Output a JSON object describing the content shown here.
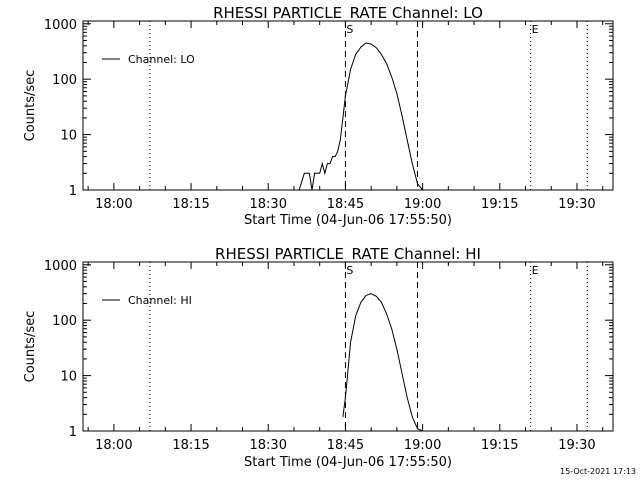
{
  "timestamp": "15-Oct-2021 17:13",
  "chart_data": [
    {
      "type": "line",
      "title": "RHESSI PARTICLE_RATE Channel: LO",
      "xlabel": "Start Time (04-Jun-06 17:55:50)",
      "ylabel": "Counts/sec",
      "yscale": "log",
      "ylim": [
        1,
        1000
      ],
      "xlim": [
        "17:54",
        "19:37"
      ],
      "xticks": [
        "18:00",
        "18:15",
        "18:30",
        "18:45",
        "19:00",
        "19:15",
        "19:30"
      ],
      "yticks": [
        "1",
        "10",
        "100",
        "1000"
      ],
      "legend": {
        "label": "Channel: LO",
        "position": "top-left"
      },
      "markers": [
        {
          "label": "",
          "style": "dotted",
          "time": "18:07"
        },
        {
          "label": "S",
          "style": "dashed",
          "time": "18:45"
        },
        {
          "label": "",
          "style": "dashed",
          "time": "18:59"
        },
        {
          "label": "E",
          "style": "dotted",
          "time": "19:21"
        },
        {
          "label": "",
          "style": "dotted",
          "time": "19:32"
        }
      ],
      "series": [
        {
          "name": "Channel: LO",
          "points": [
            [
              "18:36",
              1
            ],
            [
              "18:37",
              2
            ],
            [
              "18:38",
              2
            ],
            [
              "18:38.5",
              1
            ],
            [
              "18:39",
              2
            ],
            [
              "18:40",
              2
            ],
            [
              "18:40.5",
              3
            ],
            [
              "18:41",
              2
            ],
            [
              "18:41.5",
              3
            ],
            [
              "18:42",
              3
            ],
            [
              "18:42.5",
              4
            ],
            [
              "18:43",
              4
            ],
            [
              "18:43.5",
              5
            ],
            [
              "18:44",
              8
            ],
            [
              "18:44.5",
              20
            ],
            [
              "18:45",
              50
            ],
            [
              "18:46",
              150
            ],
            [
              "18:47",
              280
            ],
            [
              "18:48",
              380
            ],
            [
              "18:49",
              450
            ],
            [
              "18:50",
              430
            ],
            [
              "18:51",
              370
            ],
            [
              "18:52",
              280
            ],
            [
              "18:53",
              190
            ],
            [
              "18:54",
              110
            ],
            [
              "18:55",
              55
            ],
            [
              "18:56",
              22
            ],
            [
              "18:57",
              8
            ],
            [
              "18:58",
              3
            ],
            [
              "18:59",
              1.3
            ],
            [
              "19:00",
              1
            ]
          ]
        }
      ]
    },
    {
      "type": "line",
      "title": "RHESSI PARTICLE_RATE Channel: HI",
      "xlabel": "Start Time (04-Jun-06 17:55:50)",
      "ylabel": "Counts/sec",
      "yscale": "log",
      "ylim": [
        1,
        1000
      ],
      "xlim": [
        "17:54",
        "19:37"
      ],
      "xticks": [
        "18:00",
        "18:15",
        "18:30",
        "18:45",
        "19:00",
        "19:15",
        "19:30"
      ],
      "yticks": [
        "1",
        "10",
        "100",
        "1000"
      ],
      "legend": {
        "label": "Channel: HI",
        "position": "top-left"
      },
      "markers": [
        {
          "label": "",
          "style": "dotted",
          "time": "18:07"
        },
        {
          "label": "S",
          "style": "dashed",
          "time": "18:45"
        },
        {
          "label": "",
          "style": "dashed",
          "time": "18:59"
        },
        {
          "label": "E",
          "style": "dotted",
          "time": "19:21"
        },
        {
          "label": "",
          "style": "dotted",
          "time": "19:32"
        }
      ],
      "series": [
        {
          "name": "Channel: HI",
          "points": [
            [
              "18:44.5",
              1.8
            ],
            [
              "18:45",
              4
            ],
            [
              "18:46",
              40
            ],
            [
              "18:47",
              120
            ],
            [
              "18:48",
              210
            ],
            [
              "18:49",
              280
            ],
            [
              "18:50",
              300
            ],
            [
              "18:51",
              270
            ],
            [
              "18:52",
              210
            ],
            [
              "18:53",
              130
            ],
            [
              "18:54",
              70
            ],
            [
              "18:55",
              30
            ],
            [
              "18:56",
              11
            ],
            [
              "18:57",
              4
            ],
            [
              "18:58",
              1.8
            ],
            [
              "18:59",
              1.1
            ],
            [
              "19:00",
              1
            ]
          ]
        }
      ]
    }
  ]
}
